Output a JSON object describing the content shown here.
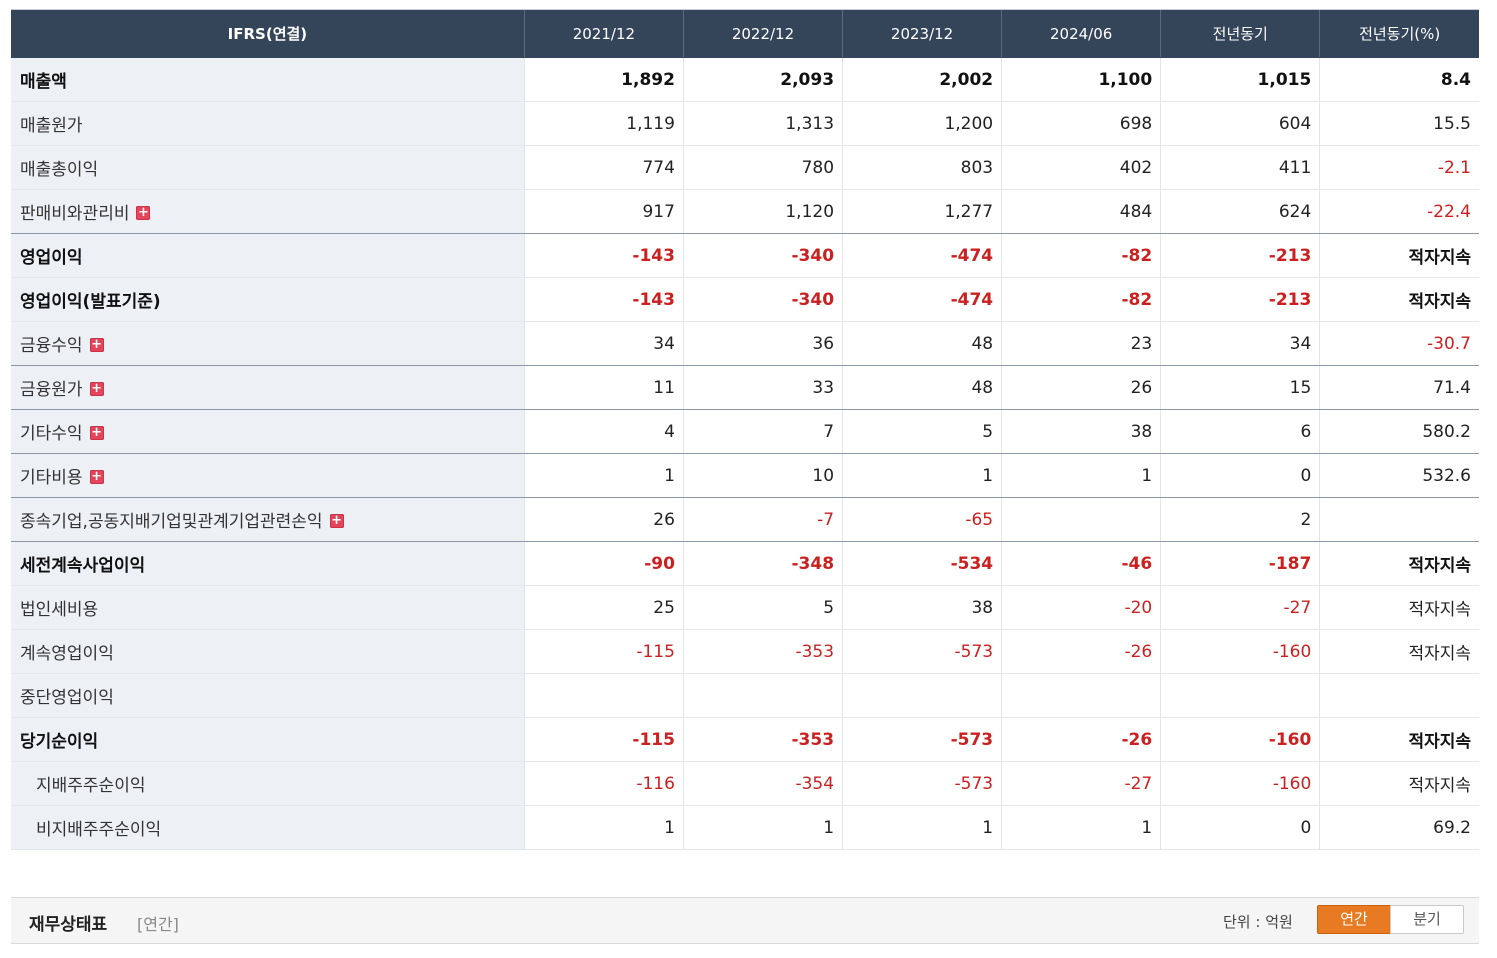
{
  "table": {
    "headers": [
      "IFRS(연결)",
      "2021/12",
      "2022/12",
      "2023/12",
      "2024/06",
      "전년동기",
      "전년동기(%)"
    ],
    "rows": [
      {
        "label": "매출액",
        "values": [
          "1,892",
          "2,093",
          "2,002",
          "1,100",
          "1,015",
          "8.4"
        ]
      },
      {
        "label": "매출원가",
        "values": [
          "1,119",
          "1,313",
          "1,200",
          "698",
          "604",
          "15.5"
        ]
      },
      {
        "label": "매출총이익",
        "values": [
          "774",
          "780",
          "803",
          "402",
          "411",
          "-2.1"
        ]
      },
      {
        "label": "판매비와관리비",
        "values": [
          "917",
          "1,120",
          "1,277",
          "484",
          "624",
          "-22.4"
        ]
      },
      {
        "label": "영업이익",
        "values": [
          "-143",
          "-340",
          "-474",
          "-82",
          "-213",
          "적자지속"
        ]
      },
      {
        "label": "영업이익(발표기준)",
        "values": [
          "-143",
          "-340",
          "-474",
          "-82",
          "-213",
          "적자지속"
        ]
      },
      {
        "label": "금융수익",
        "values": [
          "34",
          "36",
          "48",
          "23",
          "34",
          "-30.7"
        ]
      },
      {
        "label": "금융원가",
        "values": [
          "11",
          "33",
          "48",
          "26",
          "15",
          "71.4"
        ]
      },
      {
        "label": "기타수익",
        "values": [
          "4",
          "7",
          "5",
          "38",
          "6",
          "580.2"
        ]
      },
      {
        "label": "기타비용",
        "values": [
          "1",
          "10",
          "1",
          "1",
          "0",
          "532.6"
        ]
      },
      {
        "label": "종속기업,공동지배기업및관계기업관련손익",
        "values": [
          "26",
          "-7",
          "-65",
          "",
          "2",
          ""
        ]
      },
      {
        "label": "세전계속사업이익",
        "values": [
          "-90",
          "-348",
          "-534",
          "-46",
          "-187",
          "적자지속"
        ]
      },
      {
        "label": "법인세비용",
        "values": [
          "25",
          "5",
          "38",
          "-20",
          "-27",
          "적자지속"
        ]
      },
      {
        "label": "계속영업이익",
        "values": [
          "-115",
          "-353",
          "-573",
          "-26",
          "-160",
          "적자지속"
        ]
      },
      {
        "label": "중단영업이익",
        "values": [
          "",
          "",
          "",
          "",
          "",
          ""
        ]
      },
      {
        "label": "당기순이익",
        "values": [
          "-115",
          "-353",
          "-573",
          "-26",
          "-160",
          "적자지속"
        ]
      },
      {
        "label": "지배주주순이익",
        "values": [
          "-116",
          "-354",
          "-573",
          "-27",
          "-160",
          "적자지속"
        ]
      },
      {
        "label": "비지배주주순이익",
        "values": [
          "1",
          "1",
          "1",
          "1",
          "0",
          "69.2"
        ]
      }
    ],
    "expand_icon": "plus-icon"
  },
  "section": {
    "title": "재무상태표",
    "subtitle": "[연간]",
    "unit": "단위 : 억원",
    "toggle_annual": "연간",
    "toggle_quarter": "분기"
  },
  "colors": {
    "header_bg": "#344459",
    "label_bg": "#edf0f5",
    "negative": "#cc1f1f",
    "toggle_active": "#e87a23",
    "plus_icon": "#e4455a"
  }
}
